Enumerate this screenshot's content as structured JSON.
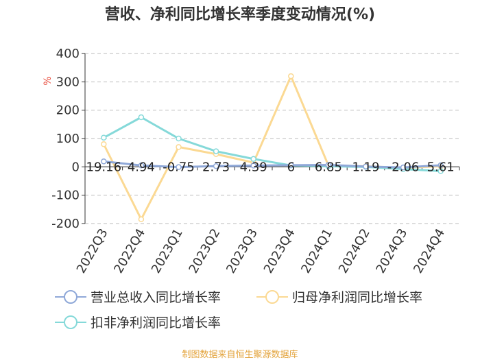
{
  "chart_data": {
    "type": "line",
    "title": "营收、净利同比增长率季度变动情况(%)",
    "unit_label": "%",
    "categories": [
      "2022Q3",
      "2022Q4",
      "2023Q1",
      "2023Q2",
      "2023Q3",
      "2023Q4",
      "2024Q1",
      "2024Q2",
      "2024Q3",
      "2024Q4"
    ],
    "ylim": [
      -200,
      400
    ],
    "yticks": [
      -200,
      -100,
      0,
      100,
      200,
      300,
      400
    ],
    "grid": true,
    "legend_position": "bottom",
    "series": [
      {
        "name": "营业总收入同比增长率",
        "color": "#8fa8d8",
        "values": [
          19.16,
          4.94,
          -0.75,
          2.73,
          4.39,
          6,
          6.85,
          1.19,
          -2.06,
          5.61
        ],
        "labels": [
          "19.16",
          "4.94",
          "-0.75",
          "2.73",
          "4.39",
          "6",
          "6.85",
          "1.19",
          "-2.06",
          "5.61"
        ]
      },
      {
        "name": "归母净利润同比增长率",
        "color": "#fbd993",
        "values": [
          80,
          -185,
          70,
          45,
          15,
          320,
          5,
          2,
          -3,
          2
        ]
      },
      {
        "name": "扣非净利润同比增长率",
        "color": "#85d9d9",
        "values": [
          103,
          175,
          100,
          55,
          28,
          5,
          2,
          0,
          -8,
          -15
        ]
      }
    ]
  },
  "source_text": "制图数据来自恒生聚源数据库"
}
